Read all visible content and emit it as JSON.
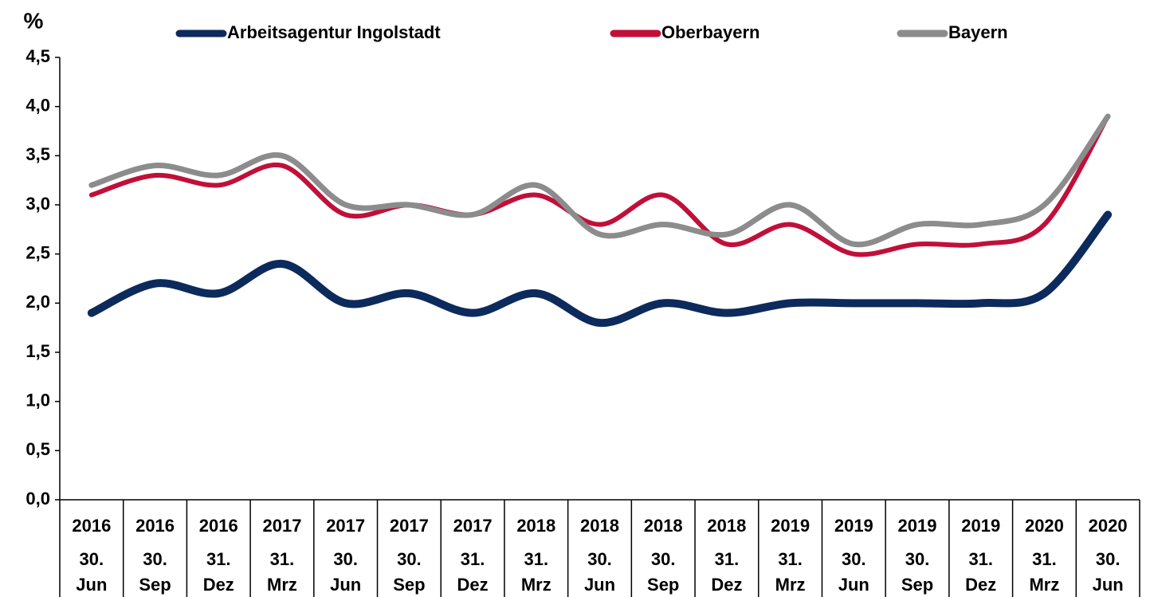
{
  "chart_data": {
    "type": "line",
    "y_unit": "%",
    "category_years": [
      "2016",
      "2016",
      "2016",
      "2017",
      "2017",
      "2017",
      "2017",
      "2018",
      "2018",
      "2018",
      "2018",
      "2019",
      "2019",
      "2019",
      "2019",
      "2020",
      "2020"
    ],
    "categories": [
      "30. Jun",
      "30. Sep",
      "31. Dez",
      "31. Mrz",
      "30. Jun",
      "30. Sep",
      "31. Dez",
      "31. Mrz",
      "30. Jun",
      "30. Sep",
      "31. Dez",
      "31. Mrz",
      "30. Jun",
      "30. Sep",
      "31. Dez",
      "31. Mrz",
      "30. Jun"
    ],
    "series": [
      {
        "name": "Arbeitsagentur Ingolstadt",
        "color": "#0d2a5c",
        "values": [
          1.9,
          2.2,
          2.1,
          2.4,
          2.0,
          2.1,
          1.9,
          2.1,
          1.8,
          2.0,
          1.9,
          2.0,
          2.0,
          2.0,
          2.0,
          2.1,
          2.9
        ]
      },
      {
        "name": "Oberbayern",
        "color": "#c0103a",
        "values": [
          3.1,
          3.3,
          3.2,
          3.4,
          2.9,
          3.0,
          2.9,
          3.1,
          2.8,
          3.1,
          2.6,
          2.8,
          2.5,
          2.6,
          2.6,
          2.8,
          3.9
        ]
      },
      {
        "name": "Bayern",
        "color": "#8c8c8c",
        "values": [
          3.2,
          3.4,
          3.3,
          3.5,
          3.0,
          3.0,
          2.9,
          3.2,
          2.7,
          2.8,
          2.7,
          3.0,
          2.6,
          2.8,
          2.8,
          3.0,
          3.9
        ]
      }
    ],
    "ylim": [
      0,
      4.5
    ],
    "yticks": [
      {
        "value": 0,
        "label": "0,0"
      },
      {
        "value": 0.5,
        "label": "0,5"
      },
      {
        "value": 1,
        "label": "1,0"
      },
      {
        "value": 1.5,
        "label": "1,5"
      },
      {
        "value": 2,
        "label": "2,0"
      },
      {
        "value": 2.5,
        "label": "2,5"
      },
      {
        "value": 3,
        "label": "3,0"
      },
      {
        "value": 3.5,
        "label": "3,5"
      },
      {
        "value": 4,
        "label": "4,0"
      },
      {
        "value": 4.5,
        "label": "4,5"
      }
    ],
    "legend": "top",
    "grid": false
  }
}
